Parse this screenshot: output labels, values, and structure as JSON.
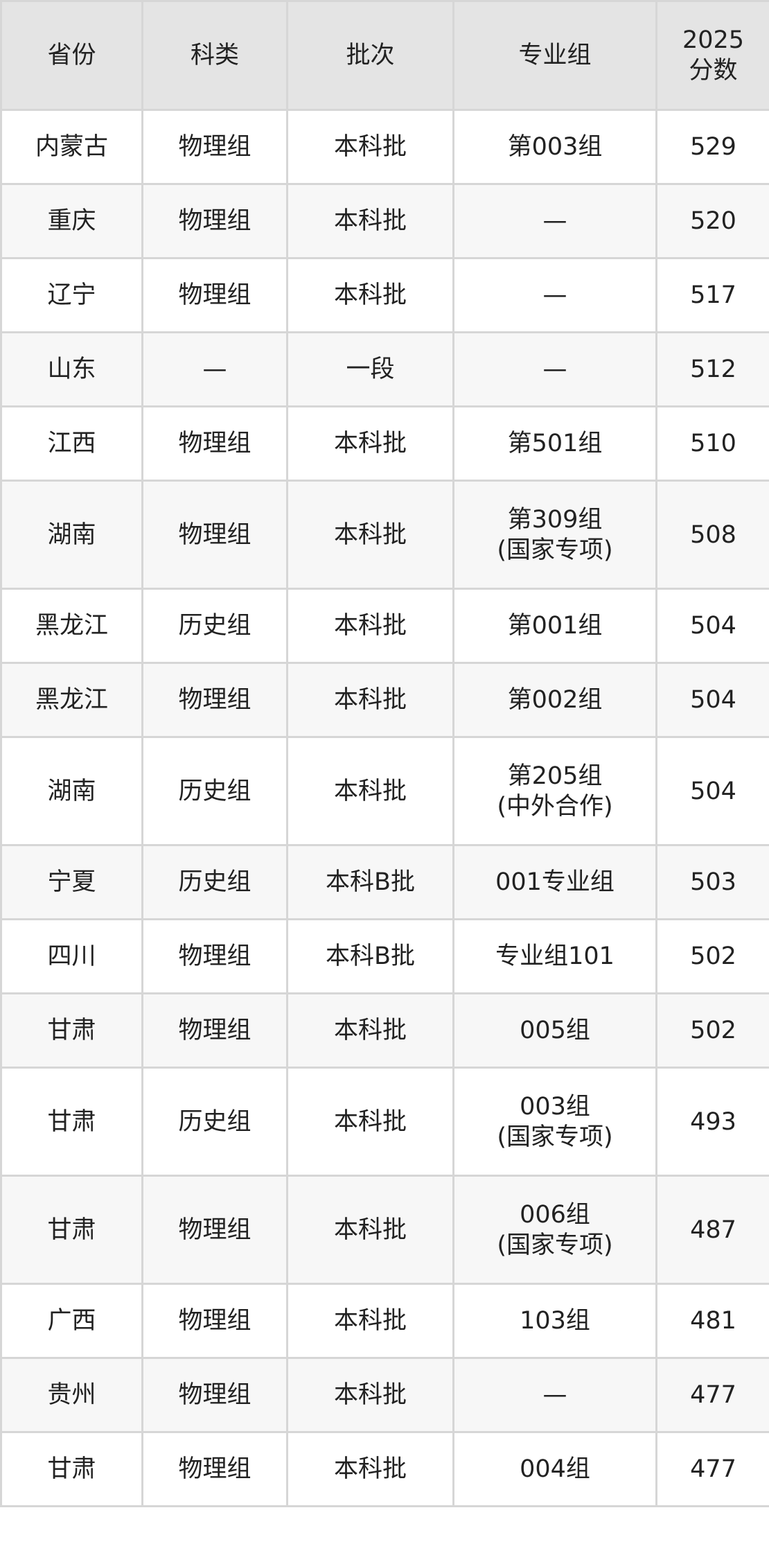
{
  "table": {
    "headers": [
      "省份",
      "科类",
      "批次",
      "专业组",
      "2025\n分数"
    ],
    "header_score_line1": "2025",
    "header_score_line2": "分数",
    "rows": [
      {
        "province": "内蒙古",
        "category": "物理组",
        "batch": "本科批",
        "group": "第003组",
        "group_note": "",
        "score": "529"
      },
      {
        "province": "重庆",
        "category": "物理组",
        "batch": "本科批",
        "group": "—",
        "group_note": "",
        "score": "520"
      },
      {
        "province": "辽宁",
        "category": "物理组",
        "batch": "本科批",
        "group": "—",
        "group_note": "",
        "score": "517"
      },
      {
        "province": "山东",
        "category": "—",
        "batch": "一段",
        "group": "—",
        "group_note": "",
        "score": "512"
      },
      {
        "province": "江西",
        "category": "物理组",
        "batch": "本科批",
        "group": "第501组",
        "group_note": "",
        "score": "510"
      },
      {
        "province": "湖南",
        "category": "物理组",
        "batch": "本科批",
        "group": "第309组",
        "group_note": "(国家专项)",
        "score": "508"
      },
      {
        "province": "黑龙江",
        "category": "历史组",
        "batch": "本科批",
        "group": "第001组",
        "group_note": "",
        "score": "504"
      },
      {
        "province": "黑龙江",
        "category": "物理组",
        "batch": "本科批",
        "group": "第002组",
        "group_note": "",
        "score": "504"
      },
      {
        "province": "湖南",
        "category": "历史组",
        "batch": "本科批",
        "group": "第205组",
        "group_note": "(中外合作)",
        "score": "504"
      },
      {
        "province": "宁夏",
        "category": "历史组",
        "batch": "本科B批",
        "group": "001专业组",
        "group_note": "",
        "score": "503"
      },
      {
        "province": "四川",
        "category": "物理组",
        "batch": "本科B批",
        "group": "专业组101",
        "group_note": "",
        "score": "502"
      },
      {
        "province": "甘肃",
        "category": "物理组",
        "batch": "本科批",
        "group": "005组",
        "group_note": "",
        "score": "502"
      },
      {
        "province": "甘肃",
        "category": "历史组",
        "batch": "本科批",
        "group": "003组",
        "group_note": "(国家专项)",
        "score": "493"
      },
      {
        "province": "甘肃",
        "category": "物理组",
        "batch": "本科批",
        "group": "006组",
        "group_note": "(国家专项)",
        "score": "487"
      },
      {
        "province": "广西",
        "category": "物理组",
        "batch": "本科批",
        "group": "103组",
        "group_note": "",
        "score": "481"
      },
      {
        "province": "贵州",
        "category": "物理组",
        "batch": "本科批",
        "group": "—",
        "group_note": "",
        "score": "477"
      },
      {
        "province": "甘肃",
        "category": "物理组",
        "batch": "本科批",
        "group": "004组",
        "group_note": "",
        "score": "477"
      }
    ]
  }
}
